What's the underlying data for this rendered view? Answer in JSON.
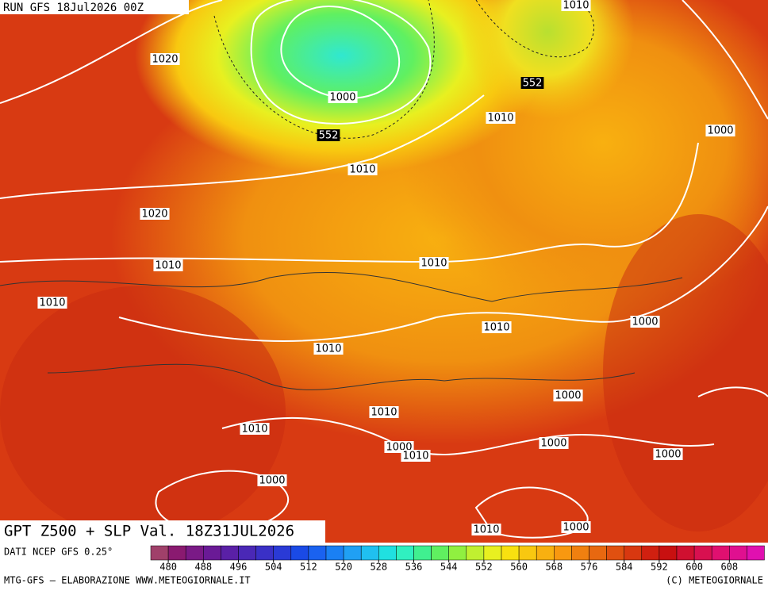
{
  "header": {
    "run": "RUN GFS 18Jul2026 00Z"
  },
  "map": {
    "contour_labels": [
      1020,
      1000,
      552,
      552,
      1010,
      1010,
      1000,
      1010,
      1020,
      1010,
      1010,
      1010,
      1000,
      1010,
      1010,
      1000,
      1010,
      1010,
      1000,
      1010,
      1000,
      1000,
      1000,
      1010,
      1000
    ]
  },
  "footer": {
    "title": "GPT Z500 + SLP Val. 18Z31JUL2026",
    "source": "DATI NCEP GFS 0.25°",
    "credit": "MTG-GFS — ELABORAZIONE WWW.METEOGIORNALE.IT",
    "copyright": "(C) METEOGIORNALE"
  },
  "legend": {
    "ticks": [
      480,
      488,
      496,
      504,
      512,
      520,
      528,
      536,
      544,
      552,
      560,
      568,
      576,
      584,
      592,
      600,
      608
    ],
    "colors": [
      "#a0406a",
      "#8a1a70",
      "#7a1a86",
      "#6a1a96",
      "#5a20a6",
      "#4a28b6",
      "#3a30c6",
      "#2a3ad6",
      "#1a4ae6",
      "#1a62f0",
      "#1a80f4",
      "#20a0f4",
      "#20c0f0",
      "#20e0e0",
      "#30f0c0",
      "#40f090",
      "#60f060",
      "#90f040",
      "#c0f030",
      "#e8f020",
      "#f8e010",
      "#f8c810",
      "#f8b010",
      "#f89810",
      "#f08010",
      "#e86810",
      "#e05010",
      "#d83810",
      "#d02010",
      "#c81010",
      "#d01030",
      "#d81050",
      "#e01070",
      "#e01090",
      "#e010b0"
    ]
  }
}
